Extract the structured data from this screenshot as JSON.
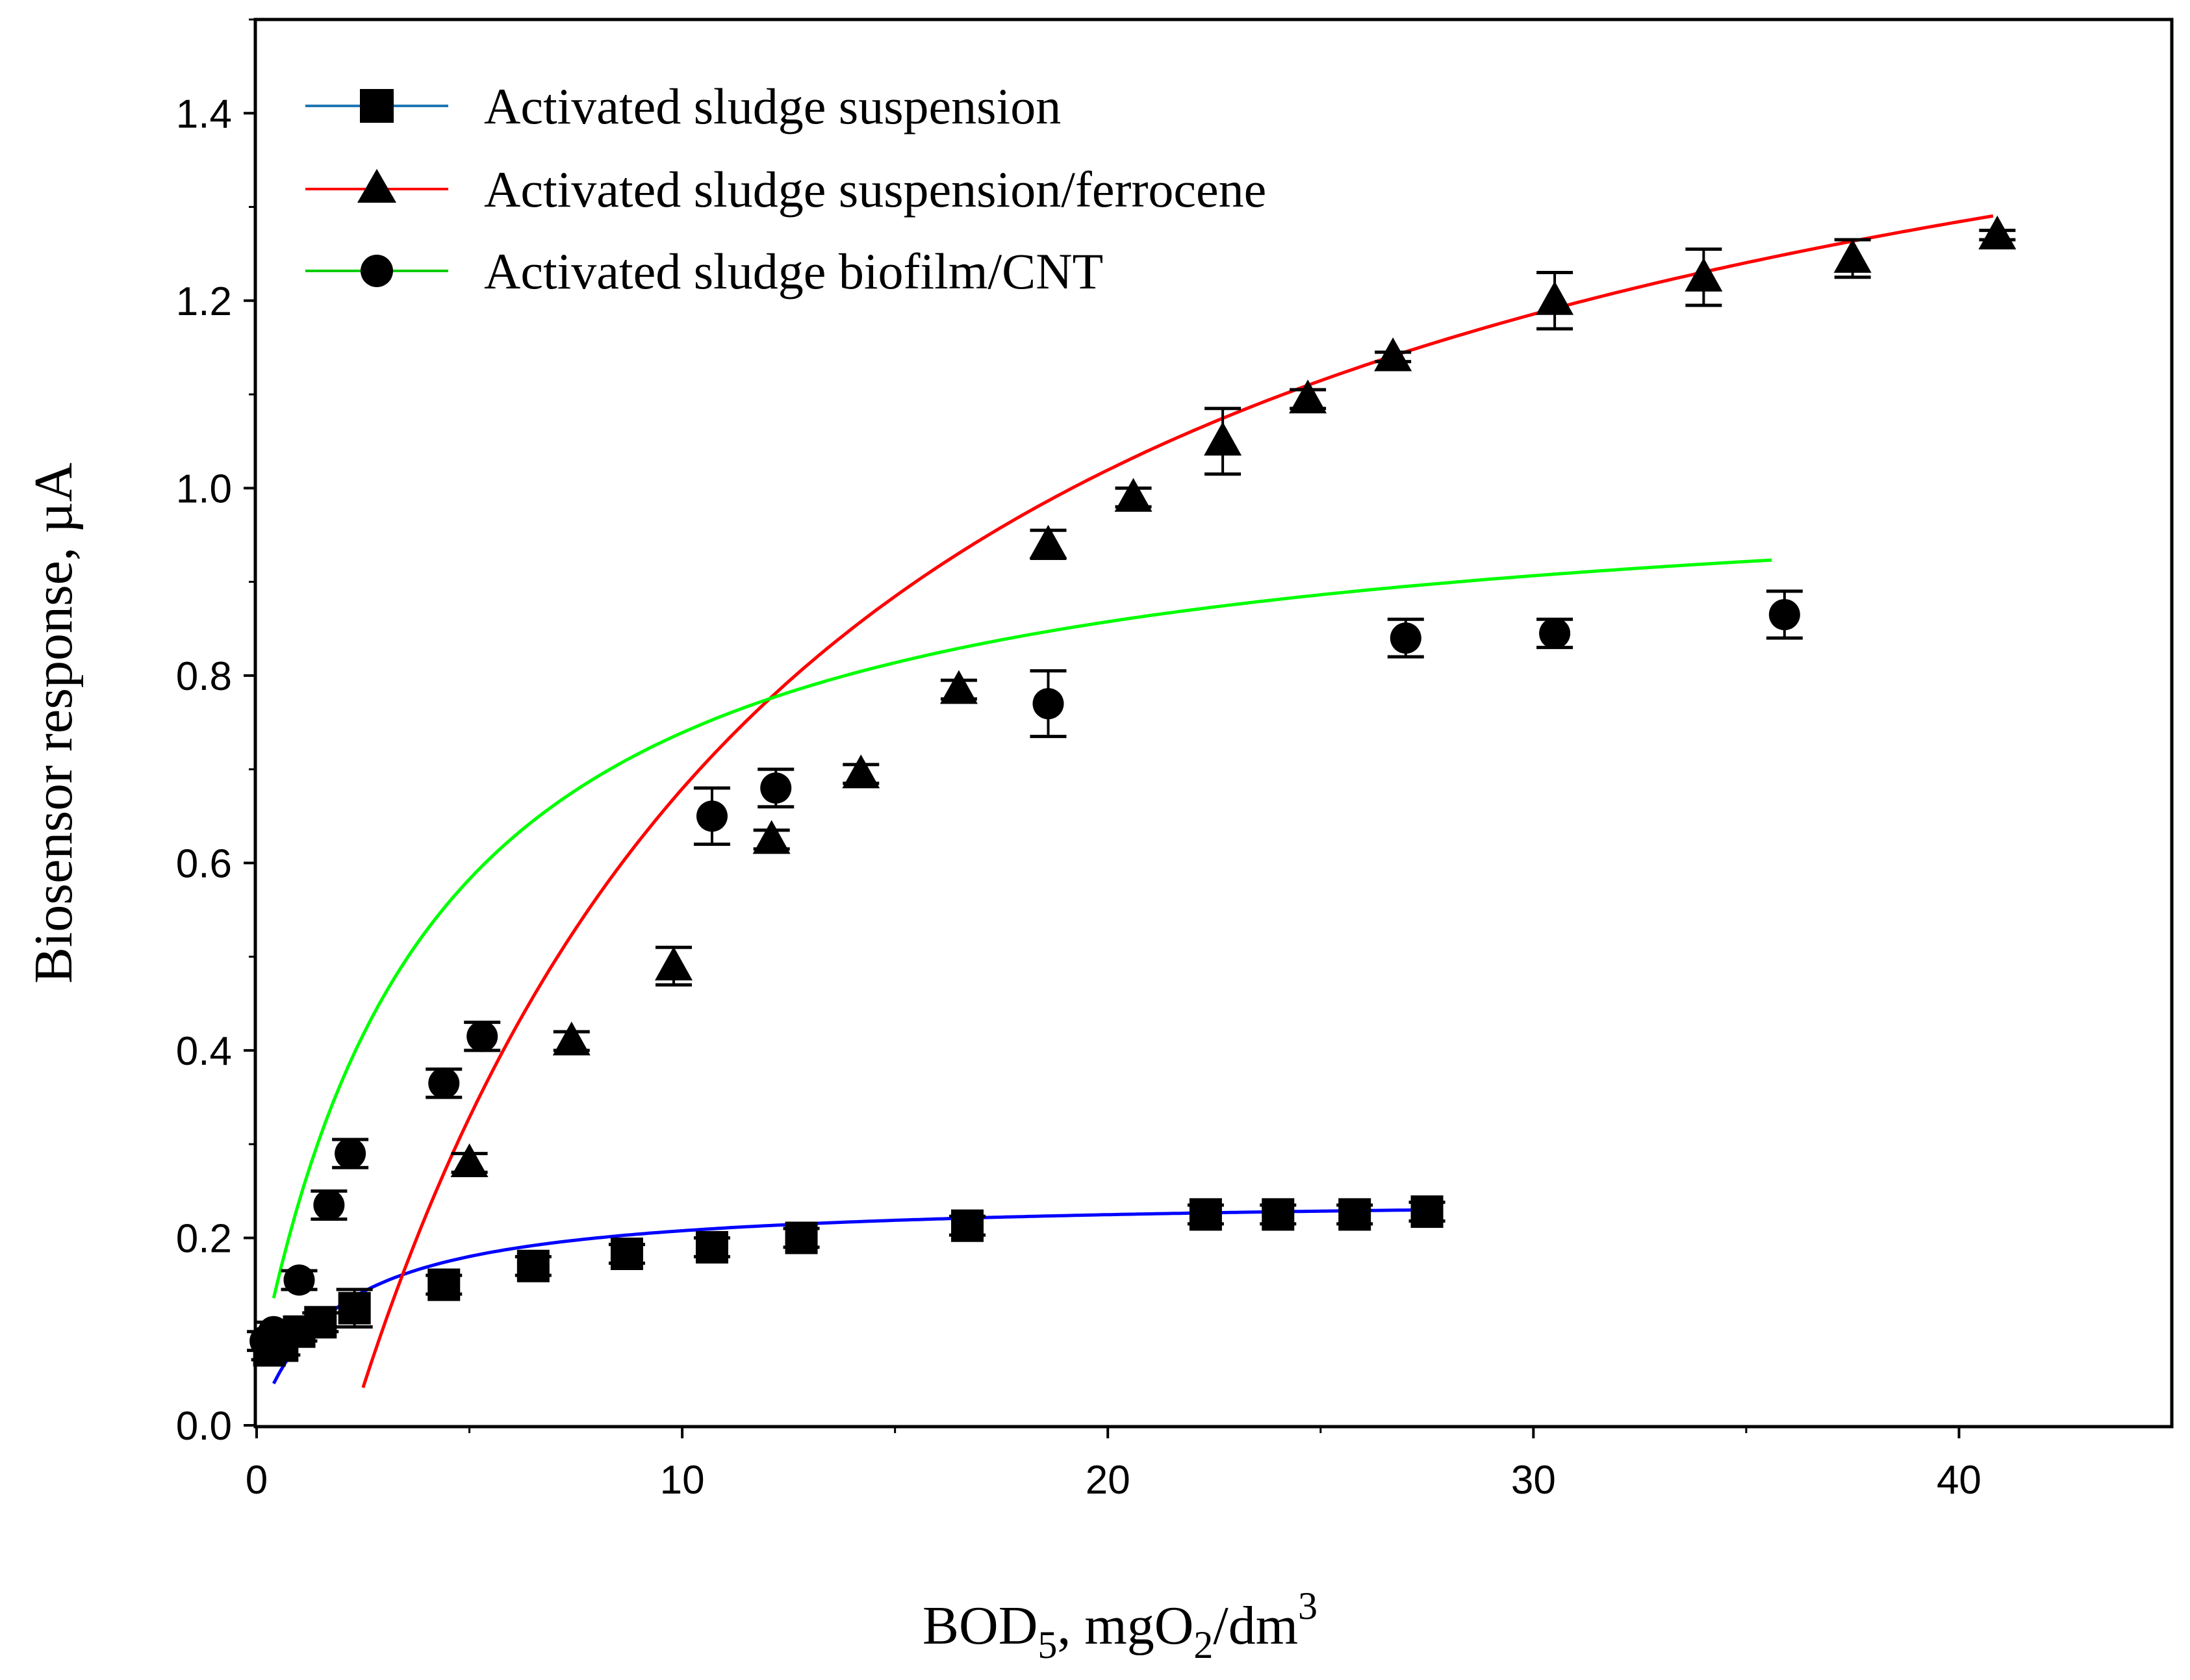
{
  "chart_data": {
    "type": "scatter",
    "title": "",
    "xlabel": "BOD",
    "xlabel_sub": "5",
    "xlabel_rest": ", mgO",
    "xlabel_sub2": "2",
    "xlabel_rest2": "/dm",
    "xlabel_sup": "3",
    "ylabel": "Biosensor response, µA",
    "xlim": [
      0,
      45
    ],
    "ylim": [
      0,
      1.5
    ],
    "xticks": [
      0,
      10,
      20,
      30,
      40
    ],
    "xtick_labels": [
      "0",
      "10",
      "20",
      "30",
      "40"
    ],
    "yticks": [
      0,
      0.2,
      0.4,
      0.6,
      0.8,
      1.0,
      1.2,
      1.4
    ],
    "ytick_labels": [
      "0.0",
      "0.2",
      "0.4",
      "0.6",
      "0.8",
      "1.0",
      "1.2",
      "1.4"
    ],
    "grid": false,
    "legend_position": "top-left",
    "series": [
      {
        "name": "Activated sludge suspension",
        "marker": "square",
        "line_color": "#0000ff",
        "legend_line_color": "#1f77b4",
        "marker_color": "#000000",
        "points": [
          {
            "x": 0.3,
            "y": 0.08,
            "err": 0.01
          },
          {
            "x": 0.6,
            "y": 0.085,
            "err": 0.01
          },
          {
            "x": 1.0,
            "y": 0.1,
            "err": 0.01
          },
          {
            "x": 1.5,
            "y": 0.11,
            "err": 0.01
          },
          {
            "x": 2.3,
            "y": 0.125,
            "err": 0.02
          },
          {
            "x": 4.4,
            "y": 0.15,
            "err": 0.01
          },
          {
            "x": 6.5,
            "y": 0.17,
            "err": 0.01
          },
          {
            "x": 8.7,
            "y": 0.183,
            "err": 0.01
          },
          {
            "x": 10.7,
            "y": 0.19,
            "err": 0.01
          },
          {
            "x": 12.8,
            "y": 0.2,
            "err": 0.01
          },
          {
            "x": 16.7,
            "y": 0.213,
            "err": 0.01
          },
          {
            "x": 22.3,
            "y": 0.225,
            "err": 0.01
          },
          {
            "x": 24.0,
            "y": 0.225,
            "err": 0.01
          },
          {
            "x": 25.8,
            "y": 0.225,
            "err": 0.01
          },
          {
            "x": 27.5,
            "y": 0.228,
            "err": 0.01
          }
        ],
        "fit_curve": {
          "x_start": 0.4,
          "x_end": 27.5,
          "vmax": 0.245,
          "km": 1.8
        }
      },
      {
        "name": "Activated sludge suspension/ferrocene",
        "marker": "triangle",
        "line_color": "#ff0000",
        "legend_line_color": "#ff0000",
        "marker_color": "#000000",
        "points": [
          {
            "x": 5.0,
            "y": 0.28,
            "err": 0.01
          },
          {
            "x": 7.4,
            "y": 0.41,
            "err": 0.01
          },
          {
            "x": 9.8,
            "y": 0.49,
            "err": 0.02
          },
          {
            "x": 12.1,
            "y": 0.625,
            "err": 0.01
          },
          {
            "x": 14.2,
            "y": 0.695,
            "err": 0.01
          },
          {
            "x": 16.5,
            "y": 0.785,
            "err": 0.01
          },
          {
            "x": 18.6,
            "y": 0.94,
            "err": 0.015
          },
          {
            "x": 20.6,
            "y": 0.99,
            "err": 0.01
          },
          {
            "x": 22.7,
            "y": 1.05,
            "err": 0.035
          },
          {
            "x": 24.7,
            "y": 1.095,
            "err": 0.01
          },
          {
            "x": 26.7,
            "y": 1.14,
            "err": 0.005
          },
          {
            "x": 30.5,
            "y": 1.2,
            "err": 0.03
          },
          {
            "x": 34.0,
            "y": 1.225,
            "err": 0.03
          },
          {
            "x": 37.5,
            "y": 1.245,
            "err": 0.02
          },
          {
            "x": 40.9,
            "y": 1.27,
            "err": 0.005
          }
        ],
        "fit_curve": {
          "x_start": 2.5,
          "x_end": 40.8,
          "vmax": 1.67,
          "km": 11.35,
          "x0": 2.22
        }
      },
      {
        "name": "Activated sludge biofilm/CNT",
        "marker": "circle",
        "line_color": "#00ff00",
        "legend_line_color": "#00cc00",
        "marker_color": "#000000",
        "points": [
          {
            "x": 0.2,
            "y": 0.09,
            "err": 0.01
          },
          {
            "x": 0.4,
            "y": 0.1,
            "err": 0.01
          },
          {
            "x": 1.0,
            "y": 0.155,
            "err": 0.01
          },
          {
            "x": 1.7,
            "y": 0.235,
            "err": 0.015
          },
          {
            "x": 2.2,
            "y": 0.29,
            "err": 0.015
          },
          {
            "x": 4.4,
            "y": 0.365,
            "err": 0.015
          },
          {
            "x": 5.3,
            "y": 0.415,
            "err": 0.015
          },
          {
            "x": 10.7,
            "y": 0.65,
            "err": 0.03
          },
          {
            "x": 12.2,
            "y": 0.68,
            "err": 0.02
          },
          {
            "x": 18.6,
            "y": 0.77,
            "err": 0.035
          },
          {
            "x": 27.0,
            "y": 0.84,
            "err": 0.02
          },
          {
            "x": 30.5,
            "y": 0.845,
            "err": 0.015
          },
          {
            "x": 35.9,
            "y": 0.865,
            "err": 0.025
          }
        ],
        "fit_curve": {
          "x_start": 0.4,
          "x_end": 35.6,
          "vmax": 0.975,
          "km": 4.15,
          "y0": 0.05
        }
      }
    ]
  }
}
